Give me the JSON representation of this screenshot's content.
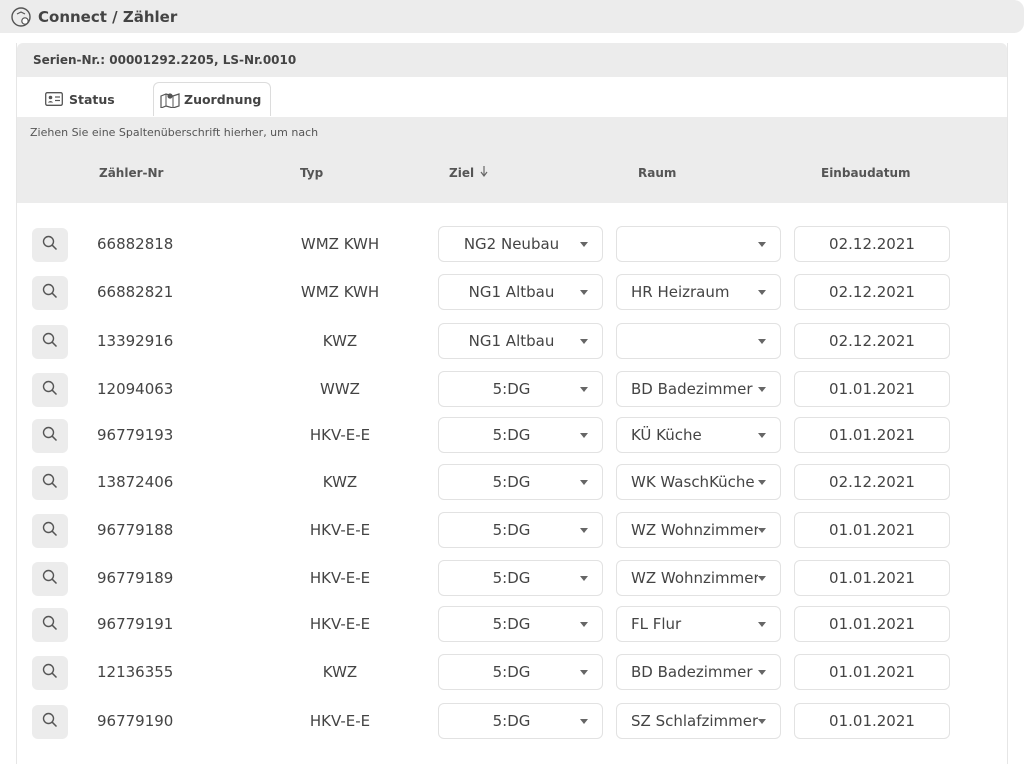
{
  "window": {
    "title": "Connect / Zähler"
  },
  "serial": "Serien-Nr.: 00001292.2205, LS-Nr.0010",
  "tabs": {
    "status": "Status",
    "assignment": "Zuordnung"
  },
  "group_hint": "Ziehen Sie eine Spaltenüberschrift hierher, um nach",
  "columns": {
    "meter_no": "Zähler-Nr",
    "type": "Typ",
    "target": "Ziel",
    "room": "Raum",
    "install_date": "Einbaudatum"
  },
  "rows": [
    {
      "meter_no": "66882818",
      "type": "WMZ KWH",
      "target": "NG2 Neubau",
      "room": "",
      "date": "02.12.2021"
    },
    {
      "meter_no": "66882821",
      "type": "WMZ KWH",
      "target": "NG1 Altbau",
      "room": "HR Heizraum",
      "date": "02.12.2021"
    },
    {
      "meter_no": "13392916",
      "type": "KWZ",
      "target": "NG1 Altbau",
      "room": "",
      "date": "02.12.2021"
    },
    {
      "meter_no": "12094063",
      "type": "WWZ",
      "target": "5:DG",
      "room": "BD Badezimmer",
      "date": "01.01.2021"
    },
    {
      "meter_no": "96779193",
      "type": "HKV-E-E",
      "target": "5:DG",
      "room": "KÜ Küche",
      "date": "01.01.2021"
    },
    {
      "meter_no": "13872406",
      "type": "KWZ",
      "target": "5:DG",
      "room": "WK WaschKüche",
      "date": "02.12.2021"
    },
    {
      "meter_no": "96779188",
      "type": "HKV-E-E",
      "target": "5:DG",
      "room": "WZ Wohnzimmer",
      "date": "01.01.2021"
    },
    {
      "meter_no": "96779189",
      "type": "HKV-E-E",
      "target": "5:DG",
      "room": "WZ Wohnzimmer",
      "date": "01.01.2021"
    },
    {
      "meter_no": "96779191",
      "type": "HKV-E-E",
      "target": "5:DG",
      "room": "FL Flur",
      "date": "01.01.2021"
    },
    {
      "meter_no": "12136355",
      "type": "KWZ",
      "target": "5:DG",
      "room": "BD Badezimmer",
      "date": "01.01.2021"
    },
    {
      "meter_no": "96779190",
      "type": "HKV-E-E",
      "target": "5:DG",
      "room": "SZ Schlafzimmer",
      "date": "01.01.2021"
    }
  ]
}
